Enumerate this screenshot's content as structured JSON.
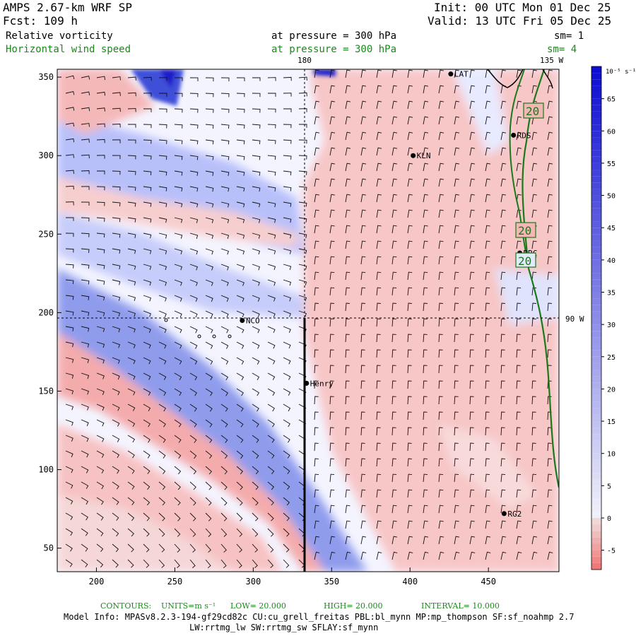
{
  "header": {
    "model": "AMPS 2.67-km WRF SP",
    "forecast": "Fcst:  109 h",
    "init": "Init: 00 UTC Mon 01 Dec 25",
    "valid": "Valid: 13 UTC Fri 05 Dec 25",
    "field1": "Relative vorticity",
    "field1_pressure": "at pressure =  300 hPa",
    "field1_sm": "sm= 1",
    "field2": "Horizontal wind speed",
    "field2_pressure": "at pressure =  300 hPa",
    "field2_sm": "sm= 4"
  },
  "map_labels": {
    "top_lon_left": "180",
    "top_lon_right": "135 W",
    "right_lon": "90 W",
    "stations": [
      "LAT",
      "RDS",
      "KLN",
      "NCO",
      "Henry",
      "RRC",
      "RG2"
    ],
    "contour_labels": [
      "20",
      "20",
      "20"
    ]
  },
  "colorbar": {
    "unit": "10⁻⁵ s⁻¹",
    "tick_labels": [
      "65",
      "60",
      "55",
      "50",
      "45",
      "40",
      "35",
      "30",
      "25",
      "20",
      "15",
      "10",
      "5",
      "0",
      "-5"
    ]
  },
  "footer": {
    "contours_label": "CONTOURS:",
    "units": "UNITS=m s⁻¹",
    "low": "LOW=  20.000",
    "high": "HIGH=  20.000",
    "interval": "INTERVAL=    10.000",
    "model_info": "Model Info: MPASv8.2.3-194-gf29cd82c CU:cu_grell_freitas PBL:bl_mynn MP:mp_thompson SF:sf_noahmp 2.7",
    "model_info2": "LW:rrtmg_lw SW:rrtmg_sw SFLAY:sf_mynn"
  },
  "colors": {
    "positive": "#f5a3a3",
    "negative": "#6f80e8",
    "strong_negative": "#1a1ac8",
    "contour": "#1a7a1a"
  },
  "chart_data": {
    "type": "heatmap",
    "x_ticks": [
      200,
      250,
      300,
      350,
      400,
      450
    ],
    "y_ticks": [
      50,
      100,
      150,
      200,
      250,
      300,
      350
    ],
    "xlim": [
      175,
      495
    ],
    "ylim": [
      35,
      355
    ],
    "colorbar_range": [
      -8,
      70
    ],
    "colorbar_ticks": [
      65,
      60,
      55,
      50,
      45,
      40,
      35,
      30,
      25,
      20,
      15,
      10,
      5,
      0,
      -5
    ],
    "stations": [
      {
        "name": "LAT",
        "x": 426,
        "y": 352
      },
      {
        "name": "RDS",
        "x": 466,
        "y": 313
      },
      {
        "name": "KLN",
        "x": 402,
        "y": 300
      },
      {
        "name": "NCO",
        "x": 293,
        "y": 195
      },
      {
        "name": "Henry",
        "x": 334,
        "y": 155
      },
      {
        "name": "RRC",
        "x": 470,
        "y": 238
      },
      {
        "name": "RG2",
        "x": 460,
        "y": 72
      }
    ],
    "contour_values": [
      20,
      20,
      20
    ]
  }
}
